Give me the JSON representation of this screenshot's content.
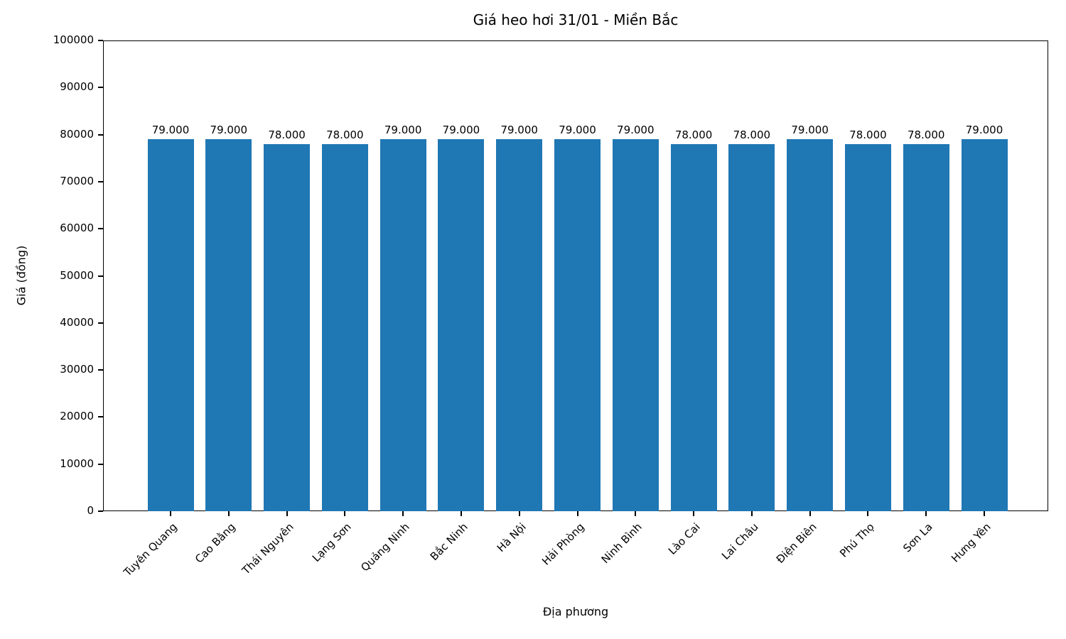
{
  "chart_data": {
    "type": "bar",
    "title": "Giá heo hơi 31/01 - Miền Bắc",
    "xlabel": "Địa phương",
    "ylabel": "Giá (đồng)",
    "categories": [
      "Tuyên Quang",
      "Cao Bằng",
      "Thái Nguyên",
      "Lạng Sơn",
      "Quảng Ninh",
      "Bắc Ninh",
      "Hà Nội",
      "Hải Phòng",
      "Ninh Bình",
      "Lào Cai",
      "Lai Châu",
      "Điện Biên",
      "Phú Thọ",
      "Sơn La",
      "Hưng Yên"
    ],
    "values": [
      79000,
      79000,
      78000,
      78000,
      79000,
      79000,
      79000,
      79000,
      79000,
      78000,
      78000,
      79000,
      78000,
      78000,
      79000
    ],
    "value_labels": [
      "79.000",
      "79.000",
      "78.000",
      "78.000",
      "79.000",
      "79.000",
      "79.000",
      "79.000",
      "79.000",
      "78.000",
      "78.000",
      "79.000",
      "78.000",
      "78.000",
      "79.000"
    ],
    "ylim": [
      0,
      100000
    ],
    "yticks": [
      0,
      10000,
      20000,
      30000,
      40000,
      50000,
      60000,
      70000,
      80000,
      90000,
      100000
    ],
    "ytick_labels": [
      "0",
      "10000",
      "20000",
      "30000",
      "40000",
      "50000",
      "60000",
      "70000",
      "80000",
      "90000",
      "100000"
    ],
    "bar_color": "#1f77b4",
    "grid": false,
    "legend_position": "none"
  }
}
